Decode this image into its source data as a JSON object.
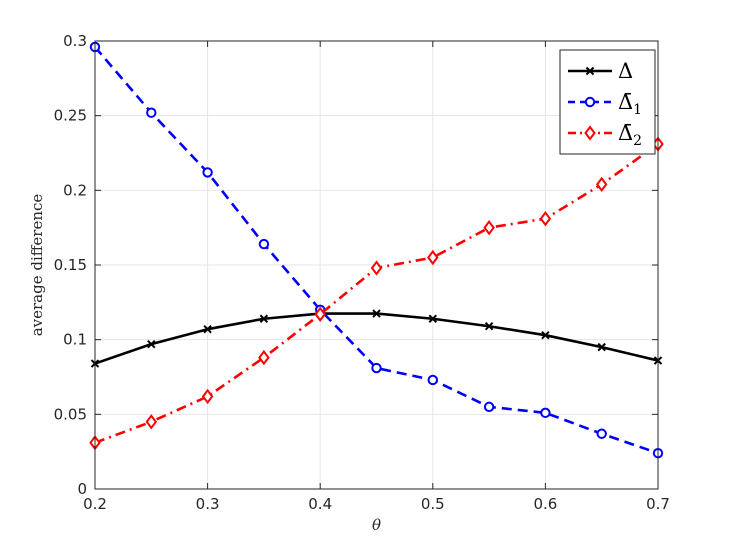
{
  "chart_data": {
    "type": "line",
    "title": "",
    "xlabel": "θ",
    "ylabel": "average difference",
    "xlim": [
      0.2,
      0.7
    ],
    "ylim": [
      0,
      0.3
    ],
    "xticks": [
      0.2,
      0.3,
      0.4,
      0.5,
      0.6,
      0.7
    ],
    "xtick_labels": [
      "0.2",
      "0.3",
      "0.4",
      "0.5",
      "0.6",
      "0.7"
    ],
    "yticks": [
      0,
      0.05,
      0.1,
      0.15,
      0.2,
      0.25,
      0.3
    ],
    "ytick_labels": [
      "0",
      "0.05",
      "0.1",
      "0.15",
      "0.2",
      "0.25",
      "0.3"
    ],
    "grid": true,
    "legend_position": "top-right",
    "x": [
      0.2,
      0.25,
      0.3,
      0.35,
      0.4,
      0.45,
      0.5,
      0.55,
      0.6,
      0.65,
      0.7
    ],
    "series": [
      {
        "name": "Δ",
        "legend_base": "Δ",
        "legend_sub": "",
        "color": "#000000",
        "marker": "x",
        "dash": "solid",
        "values": [
          0.084,
          0.097,
          0.107,
          0.114,
          0.1175,
          0.1175,
          0.114,
          0.109,
          0.103,
          0.095,
          0.086
        ]
      },
      {
        "name": "Δ̄1",
        "legend_base": "Δ̄",
        "legend_sub": "1",
        "color": "#0000ff",
        "marker": "circle",
        "dash": "dashed",
        "values": [
          0.296,
          0.252,
          0.212,
          0.164,
          0.12,
          0.081,
          0.073,
          0.055,
          0.051,
          0.037,
          0.024
        ]
      },
      {
        "name": "Δ̄2",
        "legend_base": "Δ̄",
        "legend_sub": "2",
        "color": "#ff0000",
        "marker": "diamond",
        "dash": "dashdot",
        "values": [
          0.031,
          0.045,
          0.062,
          0.088,
          0.117,
          0.148,
          0.155,
          0.175,
          0.181,
          0.204,
          0.231
        ]
      }
    ]
  }
}
